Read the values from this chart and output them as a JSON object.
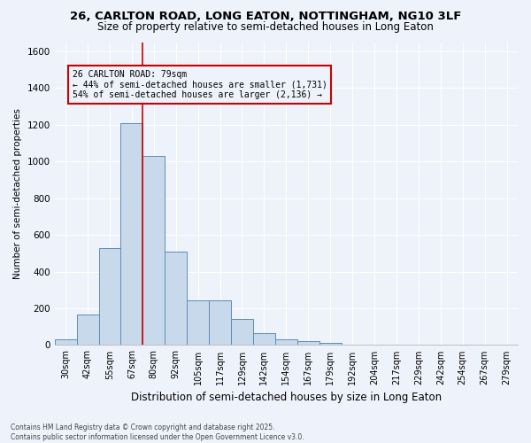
{
  "title1": "26, CARLTON ROAD, LONG EATON, NOTTINGHAM, NG10 3LF",
  "title2": "Size of property relative to semi-detached houses in Long Eaton",
  "xlabel": "Distribution of semi-detached houses by size in Long Eaton",
  "ylabel": "Number of semi-detached properties",
  "categories": [
    "30sqm",
    "42sqm",
    "55sqm",
    "67sqm",
    "80sqm",
    "92sqm",
    "105sqm",
    "117sqm",
    "129sqm",
    "142sqm",
    "154sqm",
    "167sqm",
    "179sqm",
    "192sqm",
    "204sqm",
    "217sqm",
    "229sqm",
    "242sqm",
    "254sqm",
    "267sqm",
    "279sqm"
  ],
  "values": [
    30,
    165,
    530,
    1210,
    1030,
    510,
    245,
    245,
    140,
    65,
    30,
    20,
    10,
    0,
    0,
    0,
    0,
    0,
    0,
    0,
    0
  ],
  "bar_color": "#c9d9ec",
  "bar_edge_color": "#5b8db8",
  "vline_color": "#cc0000",
  "annotation_text1": "26 CARLTON ROAD: 79sqm",
  "annotation_text2": "← 44% of semi-detached houses are smaller (1,731)",
  "annotation_text3": "54% of semi-detached houses are larger (2,136) →",
  "annotation_box_color": "#cc0000",
  "ylim": [
    0,
    1650
  ],
  "yticks": [
    0,
    200,
    400,
    600,
    800,
    1000,
    1200,
    1400,
    1600
  ],
  "footer1": "Contains HM Land Registry data © Crown copyright and database right 2025.",
  "footer2": "Contains public sector information licensed under the Open Government Licence v3.0.",
  "bg_color": "#eef2fb",
  "grid_color": "#ffffff"
}
